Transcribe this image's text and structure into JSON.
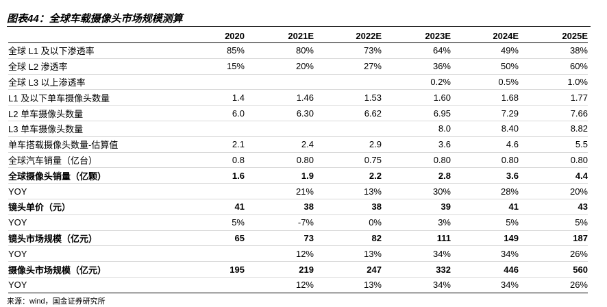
{
  "title": "图表44：全球车载摄像头市场规模测算",
  "table": {
    "header": [
      "2020",
      "2021E",
      "2022E",
      "2023E",
      "2024E",
      "2025E"
    ],
    "rows": [
      [
        "全球 L1 及以下渗透率",
        "85%",
        "80%",
        "73%",
        "64%",
        "49%",
        "38%"
      ],
      [
        "全球 L2 渗透率",
        "15%",
        "20%",
        "27%",
        "36%",
        "50%",
        "60%"
      ],
      [
        "全球 L3 以上渗透率",
        null,
        null,
        null,
        "0.2%",
        "0.5%",
        "1.0%"
      ],
      [
        "L1 及以下单车摄像头数量",
        "1.4",
        "1.46",
        "1.53",
        "1.60",
        "1.68",
        "1.77"
      ],
      [
        "L2 单车摄像头数量",
        "6.0",
        "6.30",
        "6.62",
        "6.95",
        "7.29",
        "7.66"
      ],
      [
        "L3 单车摄像头数量",
        null,
        null,
        null,
        "8.0",
        "8.40",
        "8.82"
      ],
      [
        "单车搭载摄像头数量-估算值",
        "2.1",
        "2.4",
        "2.9",
        "3.6",
        "4.6",
        "5.5"
      ],
      [
        "全球汽车销量（亿台）",
        "0.8",
        "0.80",
        "0.75",
        "0.80",
        "0.80",
        "0.80"
      ],
      [
        "全球摄像头销量（亿颗）",
        "1.6",
        "1.9",
        "2.2",
        "2.8",
        "3.6",
        "4.4"
      ],
      [
        "YOY",
        null,
        "21%",
        "13%",
        "30%",
        "28%",
        "20%"
      ],
      [
        "镜头单价（元）",
        "41",
        "38",
        "38",
        "39",
        "41",
        "43"
      ],
      [
        "YOY",
        "5%",
        "-7%",
        "0%",
        "3%",
        "5%",
        "5%"
      ],
      [
        "镜头市场规模（亿元）",
        "65",
        "73",
        "82",
        "111",
        "149",
        "187"
      ],
      [
        "YOY",
        null,
        "12%",
        "13%",
        "34%",
        "34%",
        "26%"
      ],
      [
        "摄像头市场规模（亿元）",
        "195",
        "219",
        "247",
        "332",
        "446",
        "560"
      ],
      [
        "YOY",
        null,
        "12%",
        "13%",
        "34%",
        "34%",
        "26%"
      ]
    ]
  },
  "source": "来源：wind，国金证券研究所"
}
